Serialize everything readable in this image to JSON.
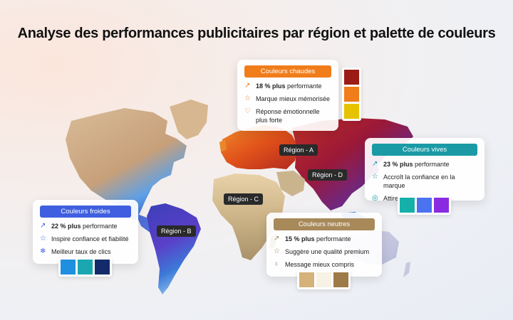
{
  "title": "Analyse des performances publicitaires par région et palette de couleurs",
  "regions": {
    "a": "Région - A",
    "b": "Région - B",
    "c": "Région - C",
    "d": "Région - D"
  },
  "cards": {
    "chaudes": {
      "label": "Couleurs chaudes",
      "color": "#f07d1a",
      "rows": [
        {
          "icon": "trend-up-icon",
          "bold": "18 % plus",
          "text": " performante"
        },
        {
          "icon": "star-icon",
          "bold": "",
          "text": "Marque mieux mémorisée"
        },
        {
          "icon": "heart-icon",
          "bold": "",
          "text": "Réponse émotionnelle plus forte"
        }
      ],
      "swatches": [
        "#9b1c14",
        "#f07d1a",
        "#e6c200"
      ]
    },
    "vives": {
      "label": "Couleurs vives",
      "color": "#1a9aa5",
      "rows": [
        {
          "icon": "trend-up-icon",
          "bold": "23 % plus",
          "text": " performante"
        },
        {
          "icon": "star-icon",
          "bold": "",
          "text": "Accroît la confiance en la marque"
        },
        {
          "icon": "eye-icon",
          "bold": "",
          "text": "Attire plus vite le regard"
        }
      ],
      "swatches": [
        "#16b0ab",
        "#4b73f0",
        "#8a2be2"
      ]
    },
    "froides": {
      "label": "Couleurs froides",
      "color": "#3f5fe0",
      "rows": [
        {
          "icon": "trend-up-icon",
          "bold": "22 % plus",
          "text": " performante"
        },
        {
          "icon": "star-icon",
          "bold": "",
          "text": "Inspire confiance et fiabilité"
        },
        {
          "icon": "snowflake-icon",
          "bold": "",
          "text": "Meilleur taux de clics"
        }
      ],
      "swatches": [
        "#1f8fe0",
        "#1aa7b0",
        "#132a6b"
      ]
    },
    "neutres": {
      "label": "Couleurs neutres",
      "color": "#a8895a",
      "rows": [
        {
          "icon": "trend-up-icon",
          "bold": "15 % plus",
          "text": " performante"
        },
        {
          "icon": "star-icon",
          "bold": "",
          "text": "Suggère une qualité premium"
        },
        {
          "icon": "bulb-icon",
          "bold": "",
          "text": "Message mieux compris"
        }
      ],
      "swatches": [
        "#d4b27a",
        "#f7f2e4",
        "#9e7a48"
      ]
    }
  }
}
